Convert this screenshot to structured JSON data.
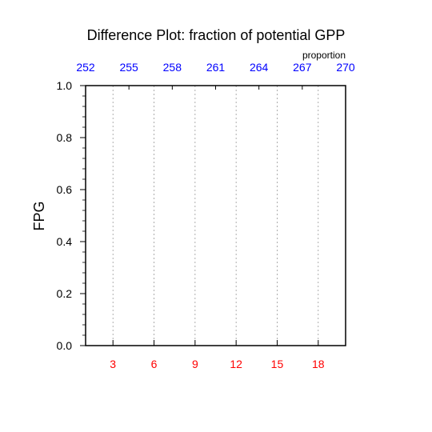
{
  "chart_data": {
    "type": "line",
    "title": "Difference Plot: fraction of potential GPP",
    "ylabel": "FPG",
    "ylim": [
      0.0,
      1.0
    ],
    "y_ticks": [
      "0.0",
      "0.2",
      "0.4",
      "0.6",
      "0.8",
      "1.0"
    ],
    "y_tick_values": [
      0.0,
      0.2,
      0.4,
      0.6,
      0.8,
      1.0
    ],
    "y_minor_step": 0.04,
    "bottom_axis": {
      "range": [
        1,
        20
      ],
      "ticks": [
        "3",
        "6",
        "9",
        "12",
        "15",
        "18"
      ],
      "tick_values": [
        3,
        6,
        9,
        12,
        15,
        18
      ],
      "color": "#ff0000"
    },
    "top_axis": {
      "units_label": "proportion",
      "ticks": [
        "252",
        "255",
        "258",
        "261",
        "264",
        "267",
        "270"
      ],
      "tick_values": [
        252,
        255,
        258,
        261,
        264,
        267,
        270
      ],
      "range": [
        252,
        270
      ],
      "color": "#0000ff"
    },
    "grid": "vertical-dashed",
    "series": []
  }
}
